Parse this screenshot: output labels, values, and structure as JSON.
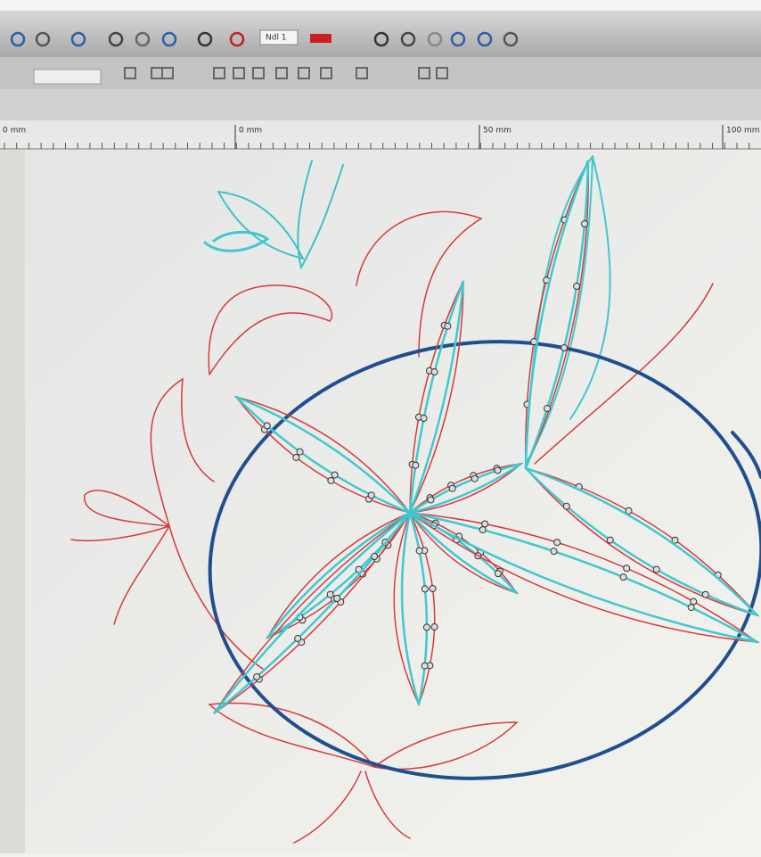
{
  "toolbar": {
    "needle_label": "Ndl 1"
  },
  "ruler": {
    "labels": [
      "0 mm",
      "0 mm",
      "50 mm",
      "100 mm"
    ]
  }
}
